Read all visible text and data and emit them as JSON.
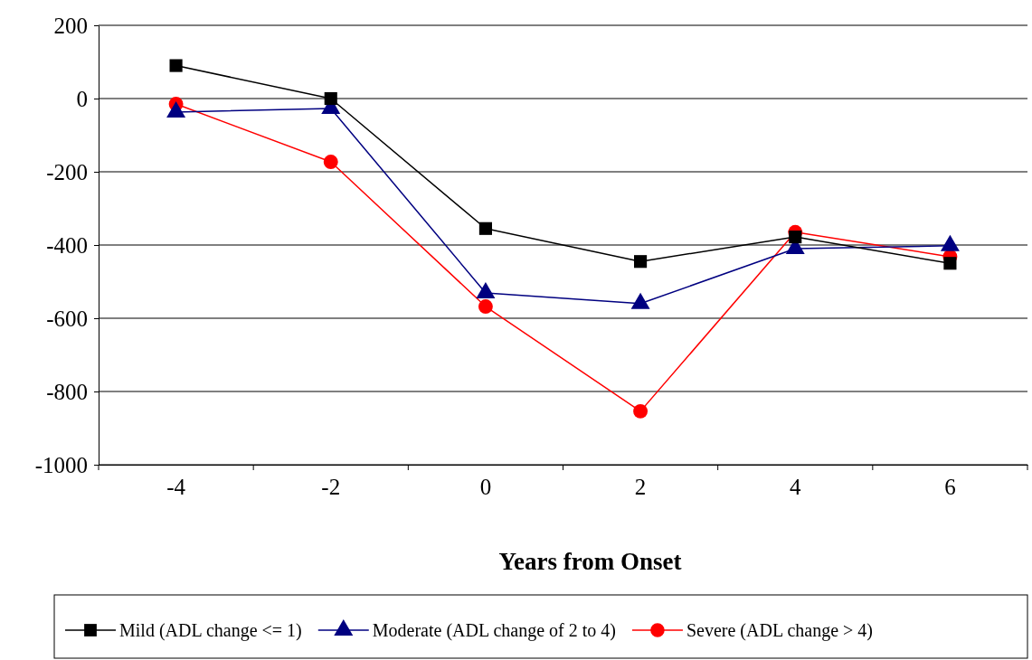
{
  "chart_data": {
    "type": "line",
    "xlabel": "Years from Onset",
    "categories": [
      "-4",
      "-2",
      "0",
      "2",
      "4",
      "6"
    ],
    "ylim": [
      -1000,
      200
    ],
    "yticks": [
      -1000,
      -800,
      -600,
      -400,
      -200,
      0,
      200
    ],
    "grid": "y",
    "legend": "bottom",
    "series": [
      {
        "name": "Mild (ADL change <= 1)",
        "color": "#000000",
        "marker": "square",
        "values": [
          90,
          0,
          -355,
          -445,
          -378,
          -450
        ]
      },
      {
        "name": "Moderate (ADL change of 2 to 4)",
        "color": "#000080",
        "marker": "triangle",
        "values": [
          -37,
          -27,
          -531,
          -560,
          -410,
          -402
        ]
      },
      {
        "name": "Severe (ADL change > 4)",
        "color": "#ff0000",
        "marker": "circle",
        "values": [
          -15,
          -173,
          -568,
          -854,
          -365,
          -432
        ]
      }
    ]
  }
}
